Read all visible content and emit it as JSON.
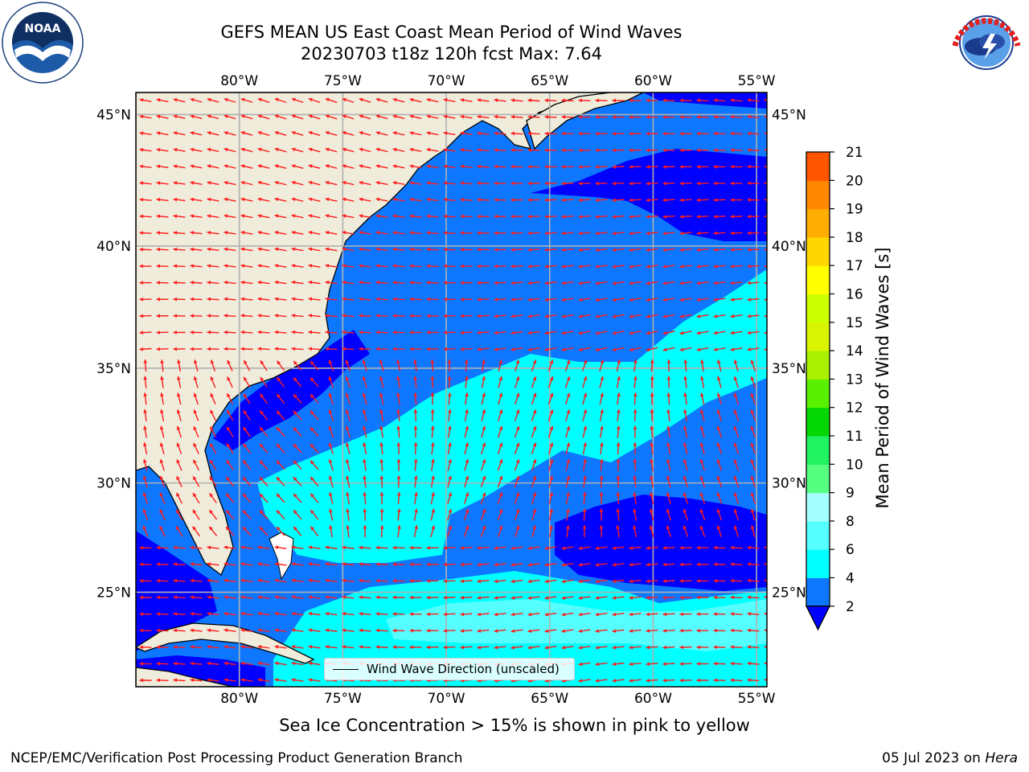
{
  "header": {
    "title_line1": "GEFS MEAN US East Coast Mean Period of Wind Waves",
    "title_line2": "20230703 t18z 120h fcst   Max: 7.64"
  },
  "logos": {
    "left": "NOAA",
    "right": "NATIONAL WEATHER SERVICE"
  },
  "map": {
    "lon_labels": [
      "80°W",
      "75°W",
      "70°W",
      "65°W",
      "60°W",
      "55°W"
    ],
    "lat_labels": [
      "45°N",
      "40°N",
      "35°N",
      "30°N",
      "25°N"
    ],
    "lon_range": [
      -85,
      -54.5
    ],
    "lat_range": [
      20.5,
      45.8
    ],
    "gridlines": true,
    "colors": {
      "land": "#efecdb",
      "arrow": "#ff1a1a",
      "grid": "#b0b0b0",
      "coast": "#000000"
    },
    "legend_text": "Wind Wave Direction (unscaled)"
  },
  "colorbar": {
    "title": "Mean Period of Wind Waves [s]",
    "ticks": [
      "2",
      "4",
      "6",
      "8",
      "9",
      "10",
      "11",
      "12",
      "13",
      "14",
      "15",
      "16",
      "17",
      "18",
      "19",
      "20",
      "21"
    ],
    "colors": [
      "#0d78ff",
      "#00ffff",
      "#56ffff",
      "#a4ffff",
      "#55ff80",
      "#21f25f",
      "#04d804",
      "#59f002",
      "#a9f001",
      "#d8f402",
      "#ccff00",
      "#ffff00",
      "#ffd700",
      "#ffad00",
      "#ff8800",
      "#ff5400",
      "#ff2b00",
      "#ff0000"
    ],
    "under_color": "#0000ff"
  },
  "sea_ice_note": "Sea Ice Concentration > 15% is shown in pink to yellow",
  "footer": {
    "left": "NCEP/EMC/Verification Post Processing Product Generation Branch",
    "right_prefix": "05 Jul 2023 on ",
    "right_host": "Hera"
  }
}
